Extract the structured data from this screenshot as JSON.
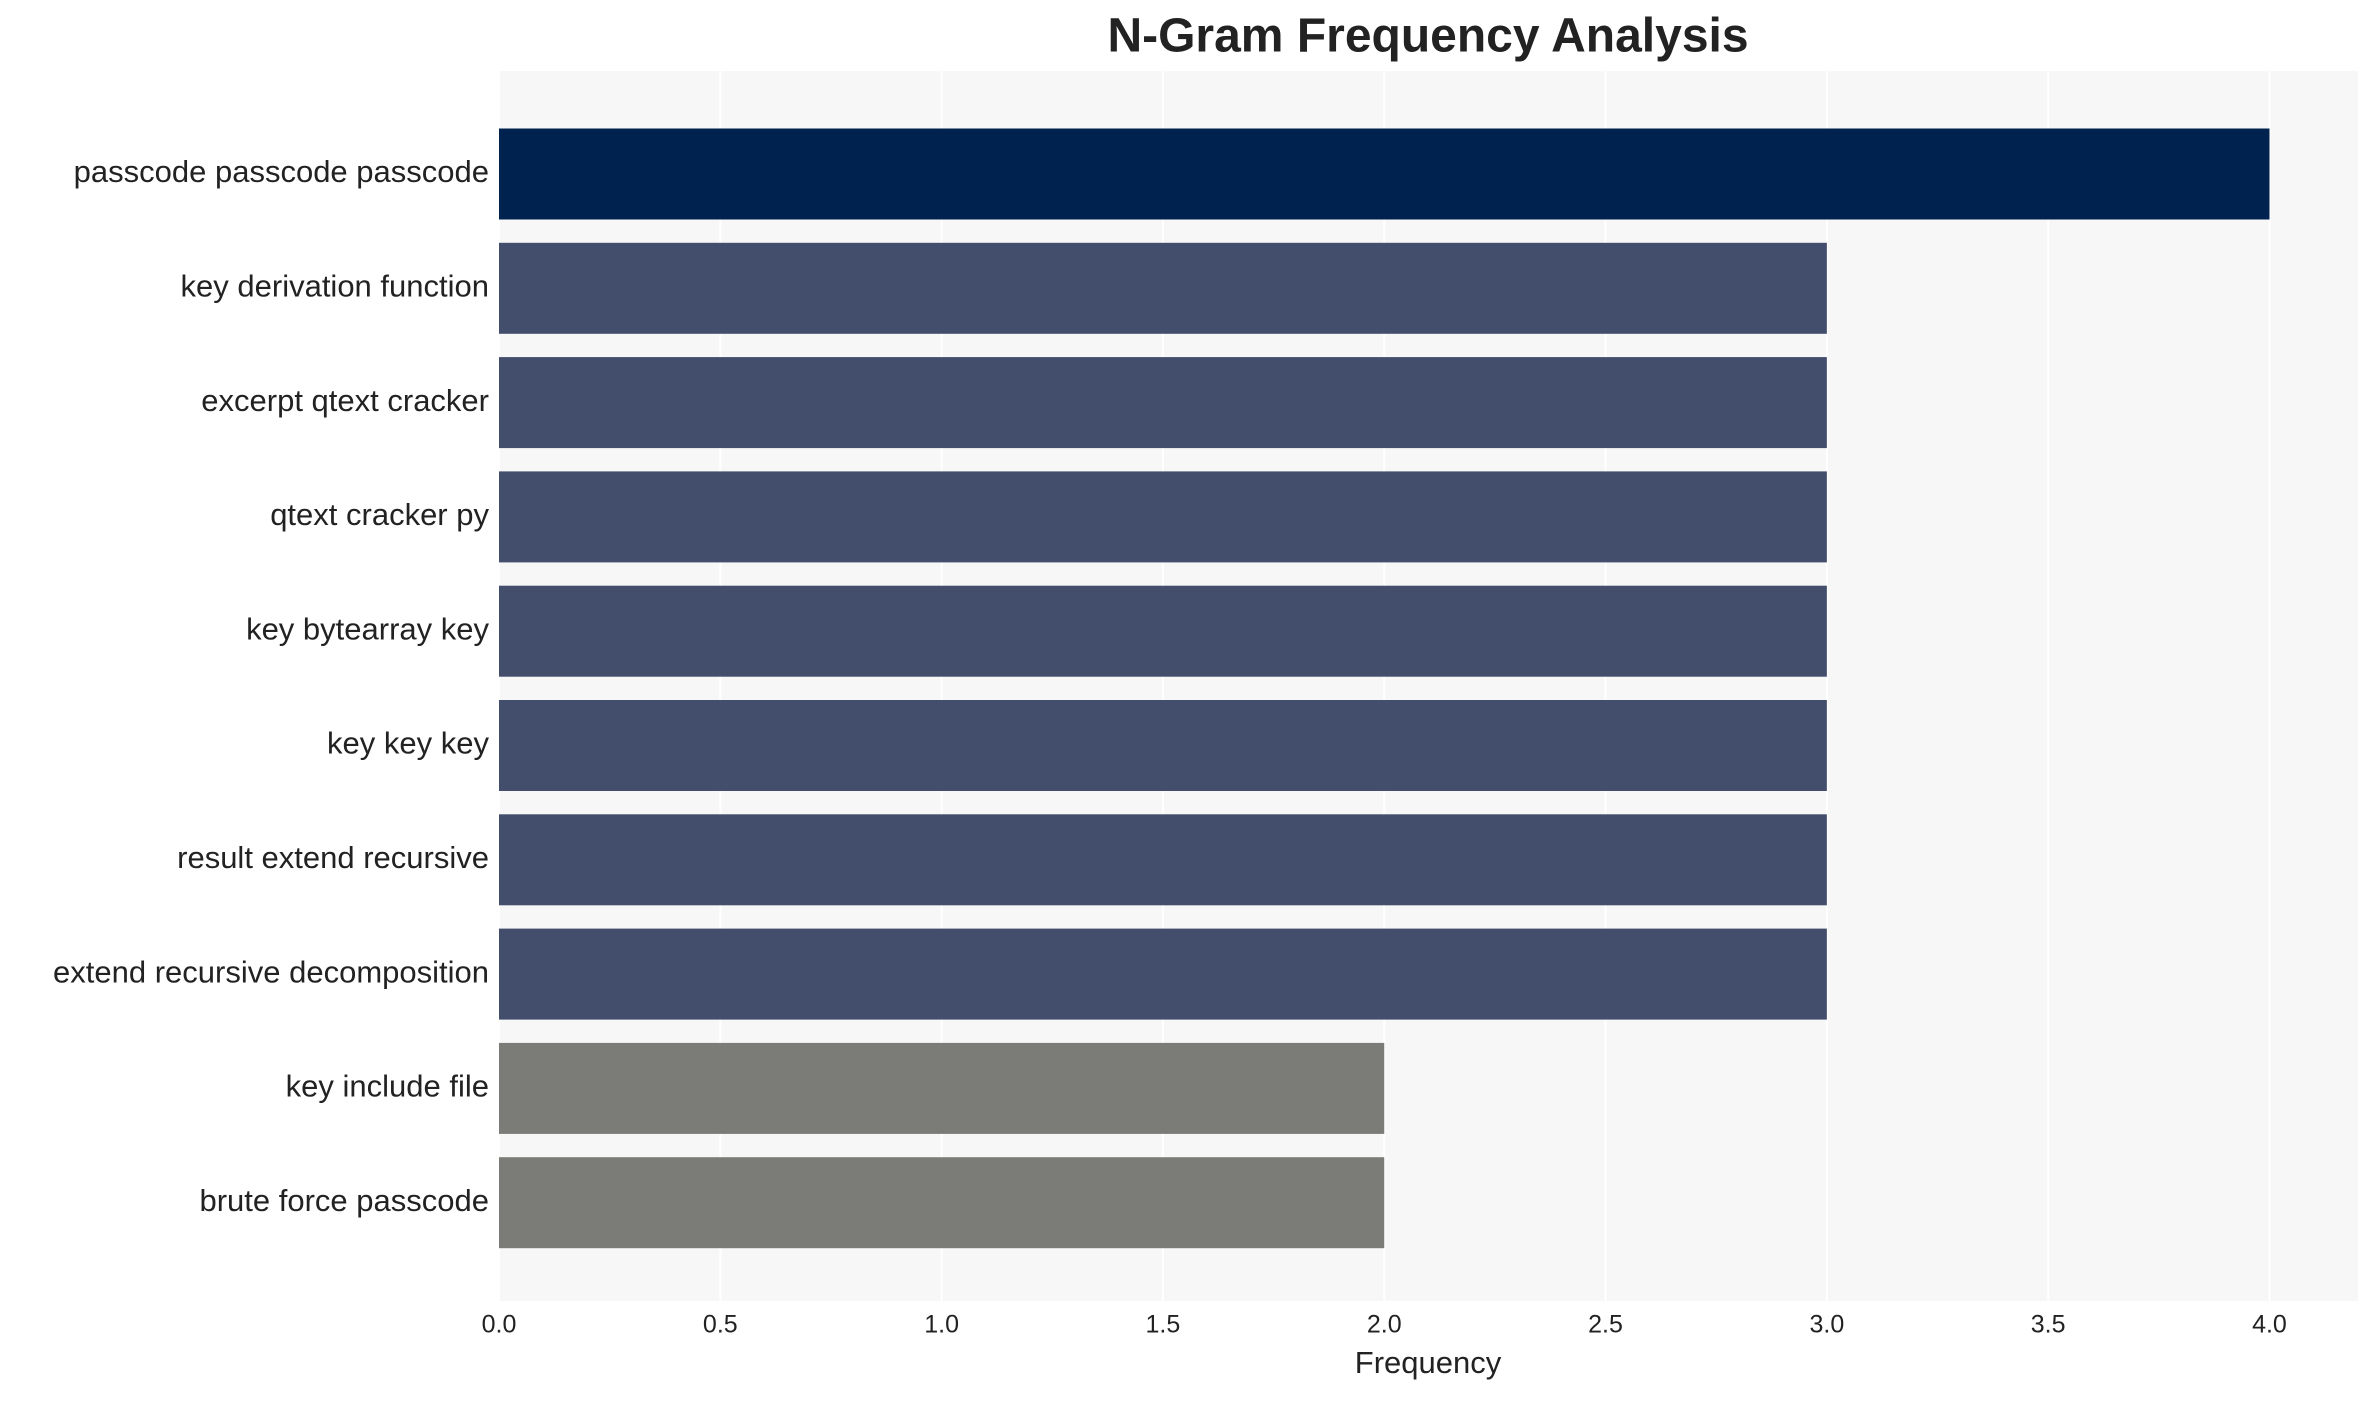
{
  "chart_data": {
    "type": "barh",
    "title": "N-Gram Frequency Analysis",
    "x_label": "Frequency",
    "categories": [
      "passcode passcode passcode",
      "key derivation function",
      "excerpt qtext cracker",
      "qtext cracker py",
      "key bytearray key",
      "key key key",
      "result extend recursive",
      "extend recursive decomposition",
      "key include file",
      "brute force passcode"
    ],
    "values": [
      4,
      3,
      3,
      3,
      3,
      3,
      3,
      3,
      2,
      2
    ],
    "colors": [
      "#00224e",
      "#434e6c",
      "#434e6c",
      "#434e6c",
      "#434e6c",
      "#434e6c",
      "#434e6c",
      "#434e6c",
      "#7b7b78",
      "#7b7b78"
    ],
    "xlim": [
      0,
      4.2
    ],
    "xticks": [
      {
        "value": 0,
        "label": "0.0"
      },
      {
        "value": 0.5,
        "label": "0.5"
      },
      {
        "value": 1,
        "label": "1.0"
      },
      {
        "value": 1.5,
        "label": "1.5"
      },
      {
        "value": 2,
        "label": "2.0"
      },
      {
        "value": 2.5,
        "label": "2.5"
      },
      {
        "value": 3,
        "label": "3.0"
      },
      {
        "value": 3.5,
        "label": "3.5"
      },
      {
        "value": 4,
        "label": "4.0"
      }
    ],
    "grid": true
  }
}
